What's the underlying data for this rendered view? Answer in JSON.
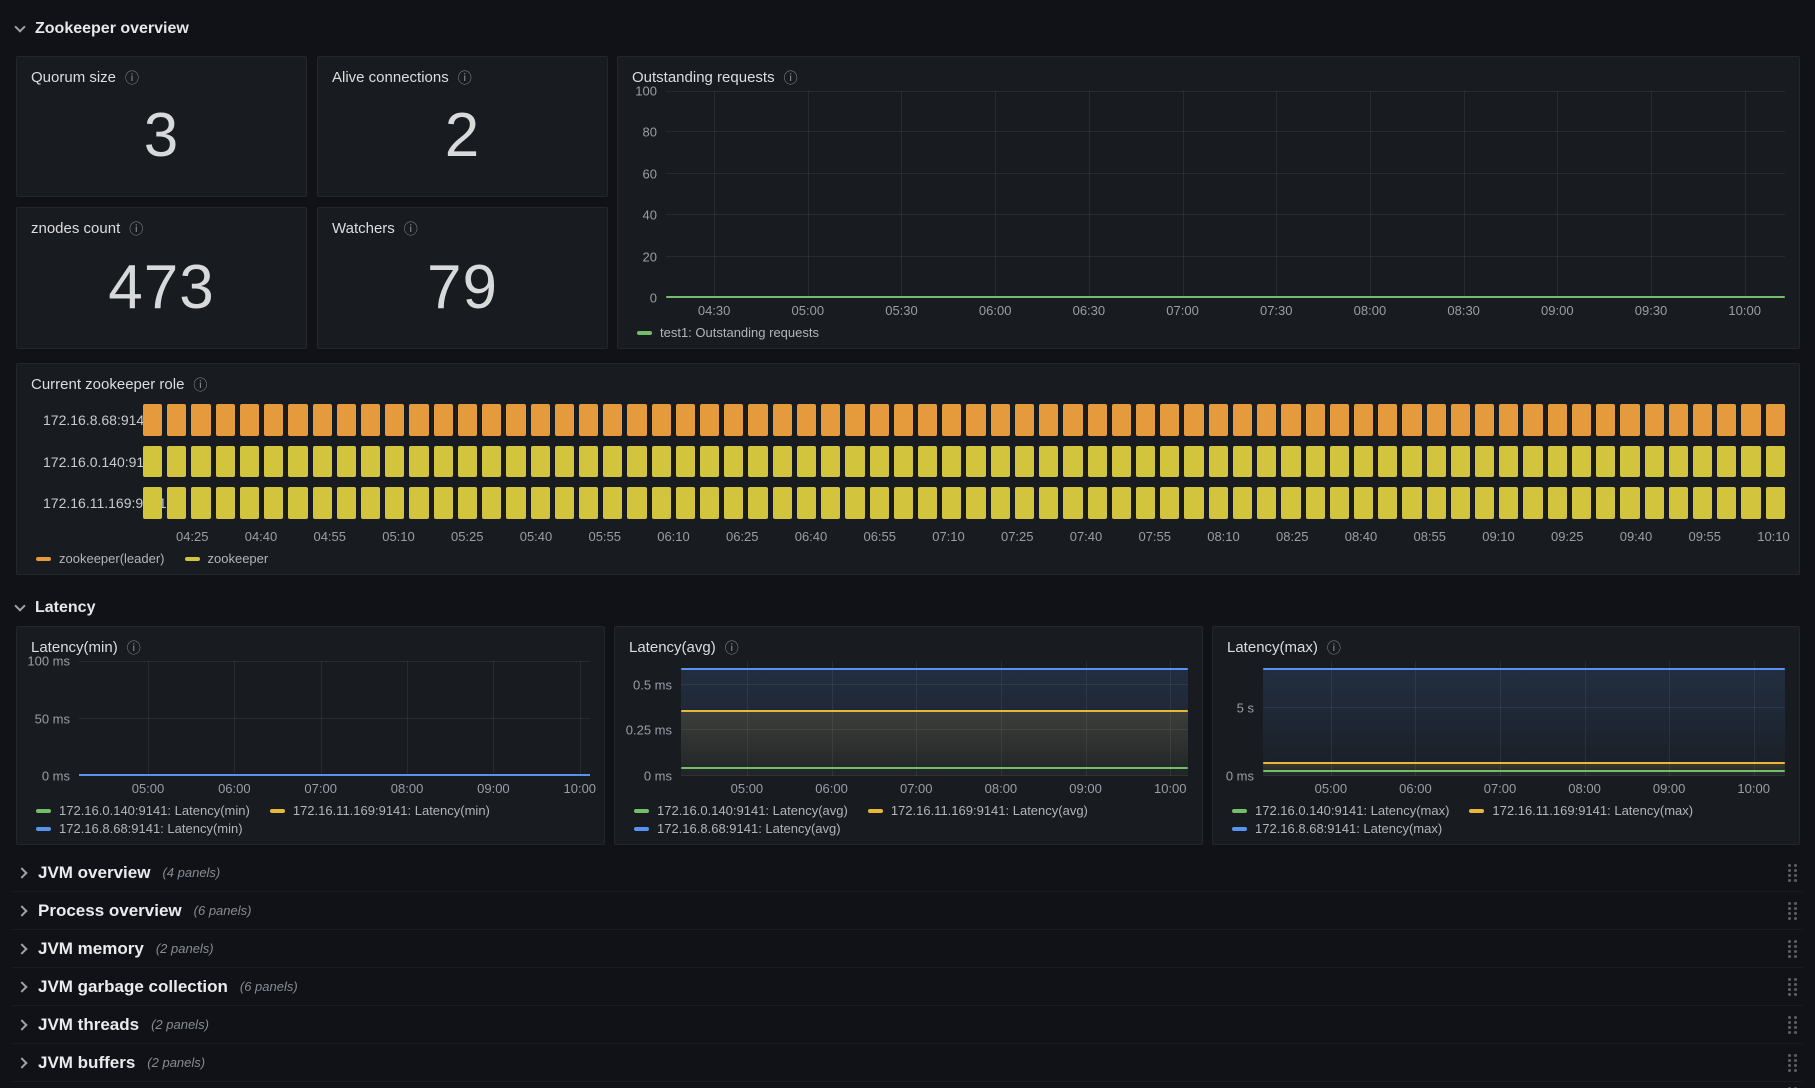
{
  "colors": {
    "green": "#73BF69",
    "yellow": "#EAB839",
    "blue": "#5794F2",
    "orange": "#E59A3C",
    "role_yellow": "#D2C43C"
  },
  "sections": {
    "overview": {
      "title": "Zookeeper overview"
    },
    "latency": {
      "title": "Latency"
    }
  },
  "stats": [
    {
      "title": "Quorum size",
      "value": "3"
    },
    {
      "title": "Alive connections",
      "value": "2"
    },
    {
      "title": "znodes count",
      "value": "473"
    },
    {
      "title": "Watchers",
      "value": "79"
    }
  ],
  "collapsed_rows": [
    {
      "title": "JVM overview",
      "count": "(4 panels)"
    },
    {
      "title": "Process overview",
      "count": "(6 panels)"
    },
    {
      "title": "JVM memory",
      "count": "(2 panels)"
    },
    {
      "title": "JVM garbage collection",
      "count": "(6 panels)"
    },
    {
      "title": "JVM threads",
      "count": "(2 panels)"
    },
    {
      "title": "JVM buffers",
      "count": "(2 panels)"
    }
  ],
  "chart_data": [
    {
      "id": "outstanding_requests",
      "type": "line",
      "title": "Outstanding requests",
      "ylim": [
        0,
        100
      ],
      "grid": true,
      "legend_position": "bottom",
      "y_ticks": [
        {
          "label": "100",
          "value": 100
        },
        {
          "label": "80",
          "value": 80
        },
        {
          "label": "60",
          "value": 60
        },
        {
          "label": "40",
          "value": 40
        },
        {
          "label": "20",
          "value": 20
        },
        {
          "label": "0",
          "value": 0
        }
      ],
      "x_ticks": [
        "04:30",
        "05:00",
        "05:30",
        "06:00",
        "06:30",
        "07:00",
        "07:30",
        "08:00",
        "08:30",
        "09:00",
        "09:30",
        "10:00"
      ],
      "x_span": [
        4.3,
        96.4
      ],
      "yaxis_w": 34,
      "series": [
        {
          "name": "test1: Outstanding requests",
          "color_key": "green",
          "value": 0,
          "fill": false
        }
      ]
    },
    {
      "id": "zookeeper_role",
      "type": "state-timeline",
      "title": "Current zookeeper role",
      "x_ticks": [
        "04:25",
        "04:40",
        "04:55",
        "05:10",
        "05:25",
        "05:40",
        "05:55",
        "06:10",
        "06:25",
        "06:40",
        "06:55",
        "07:10",
        "07:25",
        "07:40",
        "07:55",
        "08:10",
        "08:25",
        "08:40",
        "08:55",
        "09:10",
        "09:25",
        "09:40",
        "09:55",
        "10:10"
      ],
      "x_span": [
        3,
        99.3
      ],
      "label_w": 112,
      "segments": 68,
      "rows": [
        {
          "label": "172.16.8.68:9141",
          "state": "zookeeper(leader)",
          "color_key": "orange"
        },
        {
          "label": "172.16.0.140:9141",
          "state": "zookeeper",
          "color_key": "role_yellow"
        },
        {
          "label": "172.16.11.169:9141",
          "state": "zookeeper",
          "color_key": "role_yellow"
        }
      ],
      "legend": [
        {
          "label": "zookeeper(leader)",
          "color_key": "orange"
        },
        {
          "label": "zookeeper",
          "color_key": "role_yellow"
        }
      ]
    },
    {
      "id": "latency_min",
      "type": "line",
      "title": "Latency(min)",
      "ylim": [
        0,
        100
      ],
      "unit": "ms",
      "y_ticks": [
        {
          "label": "100 ms",
          "value": 100
        },
        {
          "label": "50 ms",
          "value": 50
        },
        {
          "label": "0 ms",
          "value": 0
        }
      ],
      "x_ticks": [
        "05:00",
        "06:00",
        "07:00",
        "08:00",
        "09:00",
        "10:00"
      ],
      "x_span": [
        13.5,
        98
      ],
      "yaxis_w": 48,
      "series": [
        {
          "name": "172.16.0.140:9141: Latency(min)",
          "color_key": "green",
          "value": 0,
          "fill": false
        },
        {
          "name": "172.16.11.169:9141: Latency(min)",
          "color_key": "yellow",
          "value": 0,
          "fill": false
        },
        {
          "name": "172.16.8.68:9141: Latency(min)",
          "color_key": "blue",
          "value": 0,
          "fill": false
        }
      ]
    },
    {
      "id": "latency_avg",
      "type": "line",
      "title": "Latency(avg)",
      "ylim": [
        0,
        0.63
      ],
      "unit": "ms",
      "y_ticks": [
        {
          "label": "0.5 ms",
          "value": 0.5
        },
        {
          "label": "0.25 ms",
          "value": 0.25
        },
        {
          "label": "0 ms",
          "value": 0
        }
      ],
      "x_ticks": [
        "05:00",
        "06:00",
        "07:00",
        "08:00",
        "09:00",
        "10:00"
      ],
      "x_span": [
        13,
        96.5
      ],
      "yaxis_w": 52,
      "series": [
        {
          "name": "172.16.0.140:9141: Latency(avg)",
          "color_key": "green",
          "value": 0.05,
          "fill": false
        },
        {
          "name": "172.16.11.169:9141: Latency(avg)",
          "color_key": "yellow",
          "value": 0.36,
          "fill": true
        },
        {
          "name": "172.16.8.68:9141: Latency(avg)",
          "color_key": "blue",
          "value": 0.59,
          "fill": true
        }
      ]
    },
    {
      "id": "latency_max",
      "type": "line",
      "title": "Latency(max)",
      "ylim": [
        0,
        8.5
      ],
      "unit": "s",
      "y_ticks": [
        {
          "label": "5 s",
          "value": 5
        },
        {
          "label": "0 ms",
          "value": 0
        }
      ],
      "x_ticks": [
        "05:00",
        "06:00",
        "07:00",
        "08:00",
        "09:00",
        "10:00"
      ],
      "x_span": [
        13,
        94
      ],
      "yaxis_w": 36,
      "series": [
        {
          "name": "172.16.0.140:9141: Latency(max)",
          "color_key": "green",
          "value": 0.45,
          "fill": false
        },
        {
          "name": "172.16.11.169:9141: Latency(max)",
          "color_key": "yellow",
          "value": 1.0,
          "fill": true
        },
        {
          "name": "172.16.8.68:9141: Latency(max)",
          "color_key": "blue",
          "value": 8.0,
          "fill": true
        }
      ]
    }
  ]
}
